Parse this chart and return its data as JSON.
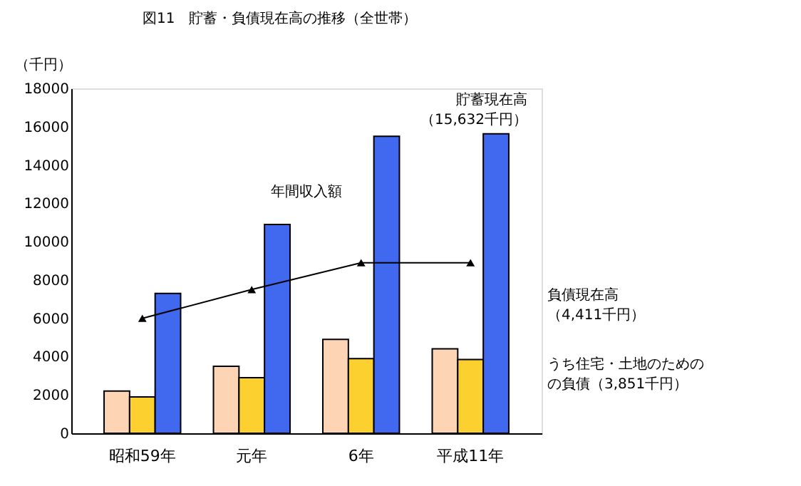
{
  "chart_data": {
    "type": "bar",
    "title": "図11　貯蓄・負債現在高の推移（全世帯）",
    "ylabel": "（千円）",
    "categories": [
      "昭和59年",
      "元年",
      "6年",
      "平成11年"
    ],
    "series": [
      {
        "color": "#fdd5b4",
        "values": [
          2200,
          3500,
          4900,
          4411
        ]
      },
      {
        "color": "#fcd02e",
        "values": [
          1900,
          2900,
          3900,
          3851
        ]
      },
      {
        "color": "#4169f0",
        "values": [
          7300,
          10900,
          15500,
          15632
        ]
      },
      {
        "name": "年間収入額",
        "type": "line",
        "color": "#000000",
        "marker": "triangle",
        "values": [
          6000,
          7500,
          8900,
          8900
        ]
      }
    ],
    "ylim": [
      0,
      18000
    ],
    "yticks": [
      0,
      2000,
      4000,
      6000,
      8000,
      10000,
      12000,
      14000,
      16000,
      18000
    ],
    "grid": false,
    "legend": false,
    "annotations": [
      "貯蓄現在高（15,632千円）",
      "負債現在高（4,411千円）",
      "うち住宅・土地のためのの負債（3,851千円）"
    ]
  }
}
